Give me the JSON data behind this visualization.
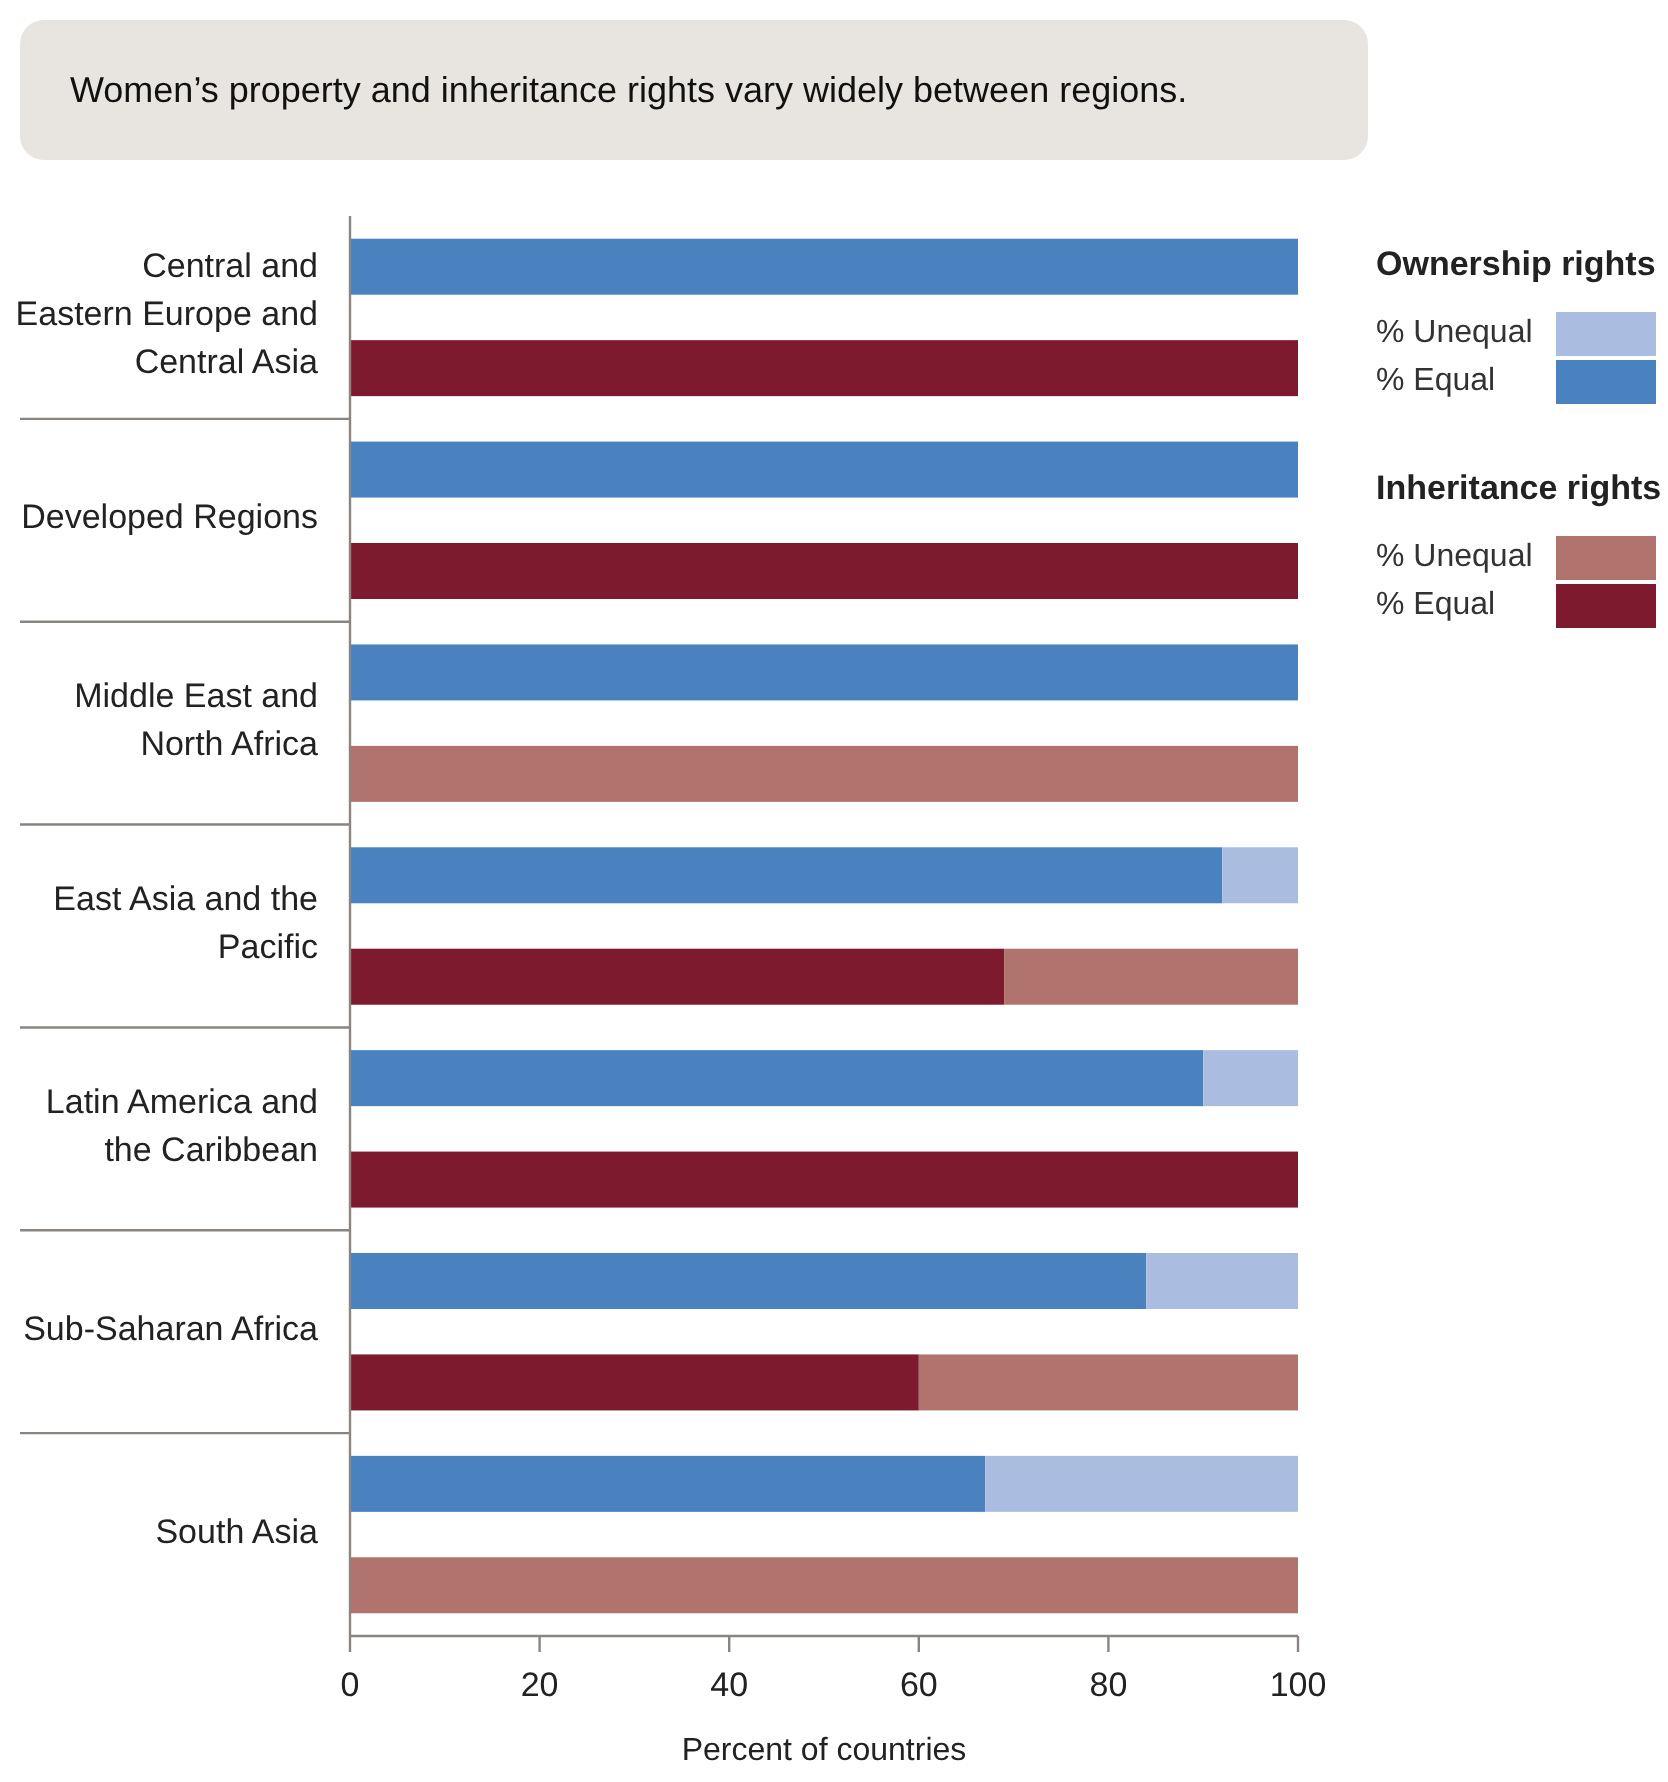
{
  "chart_data": {
    "type": "bar",
    "orientation": "horizontal",
    "stacked": true,
    "title": "Women’s property and inheritance rights vary widely between regions.",
    "xlabel": "Percent of countries",
    "categories": [
      "Central and Eastern Europe and Central Asia",
      null,
      "Developed Regions",
      null,
      "Middle East and North Africa",
      null,
      "East Asia and the Pacific",
      null,
      "Latin America and the Caribbean",
      null,
      "Sub-Saharan Africa",
      null,
      "South Asia",
      null
    ],
    "series": [
      {
        "name": "% Equal",
        "color": "#4a82bf",
        "values": [
          100,
          null,
          100,
          null,
          100,
          null,
          92,
          null,
          90,
          null,
          84,
          null,
          67,
          null
        ]
      },
      {
        "name": "% Unequal",
        "color": "#aabde0",
        "values": [
          0,
          null,
          0,
          null,
          0,
          null,
          8,
          null,
          10,
          null,
          16,
          null,
          33,
          null
        ]
      },
      {
        "name": "% Equal",
        "color": "#7d1a2e",
        "values": [
          null,
          100,
          null,
          100,
          null,
          0,
          null,
          69,
          null,
          100,
          null,
          60,
          null,
          0
        ]
      },
      {
        "name": "% Unequal",
        "color": "#b0736d",
        "values": [
          null,
          0,
          null,
          0,
          null,
          100,
          null,
          31,
          null,
          0,
          null,
          40,
          null,
          100
        ]
      }
    ],
    "annotations": [
      "Ownership rights",
      "Inheritance rights"
    ],
    "xlim": [
      0,
      100
    ],
    "xticks": [
      0,
      20,
      40,
      60,
      80,
      100
    ],
    "legend": "right",
    "grid": false
  }
}
